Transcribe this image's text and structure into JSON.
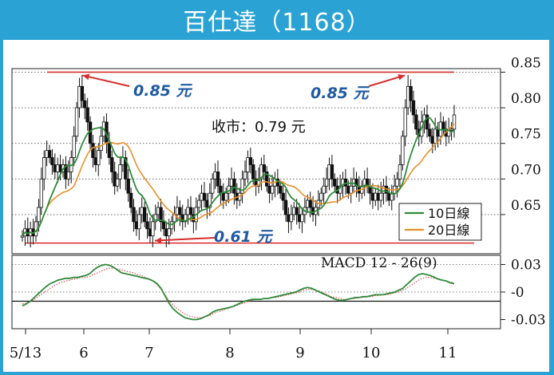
{
  "title": "百仕達（1168）",
  "chart_data": [
    {
      "type": "candlestick",
      "subtype": "price chart with moving averages",
      "ylim": [
        0.595,
        0.855
      ],
      "yticks": [
        0.85,
        0.8,
        0.75,
        0.7,
        0.65
      ],
      "ytick_labels": [
        "0.85",
        "0.80",
        "0.75",
        "0.70",
        "0.65"
      ],
      "x_month_labels": [
        "5/13",
        "6",
        "7",
        "8",
        "9",
        "10",
        "11"
      ],
      "grid": "dotted horizontal",
      "close_label": "收市：0.79 元",
      "annotations": [
        {
          "text": "0.85 元",
          "value": 0.85,
          "type": "high"
        },
        {
          "text": "0.85 元",
          "value": 0.85,
          "type": "high"
        },
        {
          "text": "0.61 元",
          "value": 0.61,
          "type": "low"
        }
      ],
      "reference_lines": [
        0.85,
        0.61
      ],
      "legend": {
        "position": "lower-right",
        "items": [
          {
            "label": "10日線",
            "color": "#2e8b3a"
          },
          {
            "label": "20日線",
            "color": "#e8902a"
          }
        ]
      },
      "closes": [
        0.62,
        0.63,
        0.62,
        0.63,
        0.62,
        0.64,
        0.66,
        0.7,
        0.73,
        0.74,
        0.73,
        0.72,
        0.71,
        0.72,
        0.71,
        0.72,
        0.7,
        0.71,
        0.73,
        0.76,
        0.8,
        0.83,
        0.81,
        0.8,
        0.78,
        0.75,
        0.73,
        0.72,
        0.74,
        0.76,
        0.78,
        0.75,
        0.73,
        0.71,
        0.69,
        0.7,
        0.72,
        0.73,
        0.7,
        0.68,
        0.66,
        0.64,
        0.63,
        0.65,
        0.66,
        0.64,
        0.63,
        0.62,
        0.64,
        0.65,
        0.66,
        0.64,
        0.63,
        0.62,
        0.63,
        0.64,
        0.65,
        0.66,
        0.65,
        0.64,
        0.65,
        0.66,
        0.65,
        0.64,
        0.66,
        0.67,
        0.68,
        0.67,
        0.66,
        0.68,
        0.7,
        0.71,
        0.69,
        0.68,
        0.67,
        0.68,
        0.69,
        0.7,
        0.68,
        0.67,
        0.68,
        0.7,
        0.71,
        0.73,
        0.72,
        0.7,
        0.69,
        0.7,
        0.72,
        0.71,
        0.69,
        0.68,
        0.69,
        0.7,
        0.69,
        0.68,
        0.67,
        0.65,
        0.64,
        0.65,
        0.66,
        0.65,
        0.64,
        0.65,
        0.66,
        0.67,
        0.66,
        0.65,
        0.66,
        0.67,
        0.68,
        0.69,
        0.7,
        0.72,
        0.7,
        0.69,
        0.68,
        0.69,
        0.7,
        0.69,
        0.68,
        0.69,
        0.7,
        0.69,
        0.68,
        0.69,
        0.7,
        0.69,
        0.68,
        0.67,
        0.68,
        0.67,
        0.68,
        0.69,
        0.68,
        0.67,
        0.68,
        0.69,
        0.7,
        0.72,
        0.76,
        0.8,
        0.83,
        0.81,
        0.79,
        0.77,
        0.76,
        0.78,
        0.79,
        0.77,
        0.76,
        0.75,
        0.77,
        0.76,
        0.78,
        0.77,
        0.76,
        0.77,
        0.77,
        0.79
      ]
    },
    {
      "type": "line",
      "subtype": "MACD",
      "label": "MACD 12 - 26(9)",
      "ylim": [
        -0.04,
        0.04
      ],
      "yticks": [
        0.03,
        0,
        -0.03
      ],
      "ytick_labels": [
        "0.03",
        "-0",
        "-0.03"
      ],
      "macd": [
        -0.015,
        -0.013,
        -0.01,
        -0.006,
        -0.002,
        0.002,
        0.006,
        0.009,
        0.011,
        0.013,
        0.014,
        0.015,
        0.015,
        0.016,
        0.016,
        0.017,
        0.018,
        0.02,
        0.024,
        0.027,
        0.029,
        0.03,
        0.029,
        0.027,
        0.024,
        0.021,
        0.02,
        0.019,
        0.018,
        0.017,
        0.016,
        0.015,
        0.014,
        0.012,
        0.009,
        0.004,
        -0.004,
        -0.012,
        -0.018,
        -0.022,
        -0.025,
        -0.028,
        -0.029,
        -0.03,
        -0.03,
        -0.029,
        -0.027,
        -0.025,
        -0.022,
        -0.02,
        -0.019,
        -0.018,
        -0.017,
        -0.016,
        -0.014,
        -0.012,
        -0.01,
        -0.009,
        -0.008,
        -0.008,
        -0.008,
        -0.007,
        -0.007,
        -0.006,
        -0.005,
        -0.004,
        -0.003,
        -0.002,
        -0.001,
        0.0,
        0.002,
        0.004,
        0.005,
        0.004,
        0.002,
        0.0,
        -0.002,
        -0.004,
        -0.006,
        -0.008,
        -0.009,
        -0.009,
        -0.008,
        -0.007,
        -0.006,
        -0.006,
        -0.005,
        -0.005,
        -0.004,
        -0.003,
        -0.003,
        -0.003,
        -0.002,
        -0.001,
        0.0,
        0.002,
        0.004,
        0.008,
        0.012,
        0.016,
        0.019,
        0.02,
        0.019,
        0.018,
        0.016,
        0.014,
        0.013,
        0.012,
        0.01,
        0.009
      ],
      "signal": [
        -0.013,
        -0.012,
        -0.01,
        -0.008,
        -0.005,
        -0.002,
        0.001,
        0.004,
        0.007,
        0.009,
        0.011,
        0.012,
        0.013,
        0.014,
        0.015,
        0.016,
        0.016,
        0.017,
        0.019,
        0.021,
        0.023,
        0.025,
        0.026,
        0.026,
        0.025,
        0.024,
        0.023,
        0.022,
        0.021,
        0.019,
        0.018,
        0.016,
        0.014,
        0.012,
        0.008,
        0.003,
        -0.003,
        -0.009,
        -0.014,
        -0.018,
        -0.021,
        -0.024,
        -0.026,
        -0.027,
        -0.028,
        -0.028,
        -0.027,
        -0.026,
        -0.024,
        -0.022,
        -0.021,
        -0.019,
        -0.018,
        -0.016,
        -0.015,
        -0.013,
        -0.012,
        -0.01,
        -0.009,
        -0.008,
        -0.008,
        -0.007,
        -0.007,
        -0.006,
        -0.006,
        -0.005,
        -0.004,
        -0.003,
        -0.002,
        -0.001,
        0.0,
        0.002,
        0.003,
        0.003,
        0.002,
        0.001,
        -0.001,
        -0.003,
        -0.005,
        -0.006,
        -0.007,
        -0.008,
        -0.008,
        -0.007,
        -0.007,
        -0.006,
        -0.006,
        -0.005,
        -0.005,
        -0.004,
        -0.004,
        -0.003,
        -0.003,
        -0.002,
        -0.001,
        0.0,
        0.002,
        0.004,
        0.007,
        0.01,
        0.013,
        0.015,
        0.016,
        0.016,
        0.015,
        0.014,
        0.013,
        0.012,
        0.011,
        0.01
      ]
    }
  ]
}
